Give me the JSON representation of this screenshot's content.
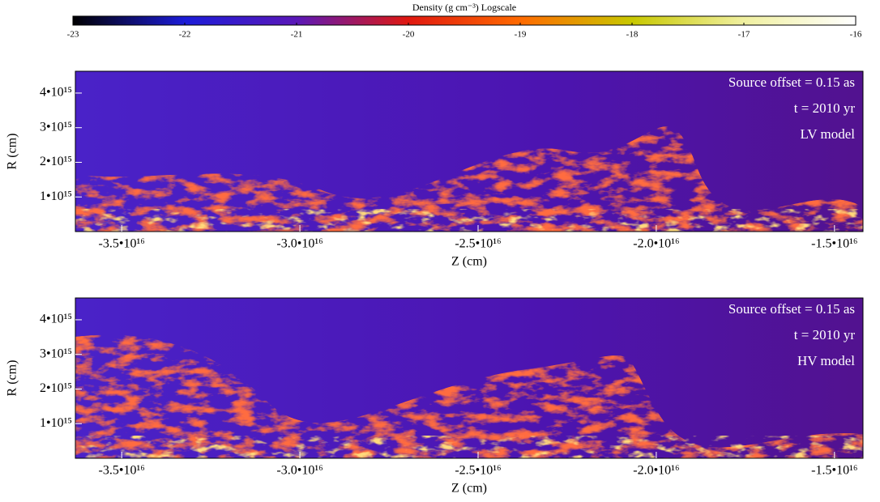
{
  "chart_data": [
    {
      "type": "colorbar",
      "title": "Density (g cm⁻³) Logscale",
      "xlim": [
        -23,
        -16
      ],
      "xticks": [
        -23,
        -22,
        -21,
        -20,
        -19,
        -18,
        -17,
        -16
      ],
      "colors": [
        "#000000",
        "#1c1cd8",
        "#5a18b8",
        "#e01810",
        "#ff6a00",
        "#c8c800",
        "#f0f0a0",
        "#ffffff"
      ]
    },
    {
      "type": "heatmap",
      "xlabel": "Z (cm)",
      "ylabel": "R (cm)",
      "xlim": [
        -3.63e+16,
        -1.42e+16
      ],
      "ylim": [
        0,
        4630000000000000.0
      ],
      "xticks": [
        {
          "value": -3.5e+16,
          "label": "-3.5•10¹⁶"
        },
        {
          "value": -3e+16,
          "label": "-3.0•10¹⁶"
        },
        {
          "value": -2.5e+16,
          "label": "-2.5•10¹⁶"
        },
        {
          "value": -2e+16,
          "label": "-2.0•10¹⁶"
        },
        {
          "value": -1.5e+16,
          "label": "-1.5•10¹⁶"
        }
      ],
      "yticks": [
        {
          "value": 1000000000000000.0,
          "label": "1•10¹⁵"
        },
        {
          "value": 2000000000000000.0,
          "label": "2•10¹⁵"
        },
        {
          "value": 3000000000000000.0,
          "label": "3•10¹⁵"
        },
        {
          "value": 4000000000000000.0,
          "label": "4•10¹⁵"
        }
      ],
      "annotations": [
        "Source offset = 0.15 as",
        "t = 2010 yr",
        "LV model"
      ]
    },
    {
      "type": "heatmap",
      "xlabel": "Z (cm)",
      "ylabel": "R (cm)",
      "xlim": [
        -3.63e+16,
        -1.42e+16
      ],
      "ylim": [
        0,
        4630000000000000.0
      ],
      "xticks": [
        {
          "value": -3.5e+16,
          "label": "-3.5•10¹⁶"
        },
        {
          "value": -3e+16,
          "label": "-3.0•10¹⁶"
        },
        {
          "value": -2.5e+16,
          "label": "-2.5•10¹⁶"
        },
        {
          "value": -2e+16,
          "label": "-2.0•10¹⁶"
        },
        {
          "value": -1.5e+16,
          "label": "-1.5•10¹⁶"
        }
      ],
      "yticks": [
        {
          "value": 1000000000000000.0,
          "label": "1•10¹⁵"
        },
        {
          "value": 2000000000000000.0,
          "label": "2•10¹⁵"
        },
        {
          "value": 3000000000000000.0,
          "label": "3•10¹⁵"
        },
        {
          "value": 4000000000000000.0,
          "label": "4•10¹⁵"
        }
      ],
      "annotations": [
        "Source offset = 0.15 as",
        "t = 2010 yr",
        "HV model"
      ]
    }
  ]
}
